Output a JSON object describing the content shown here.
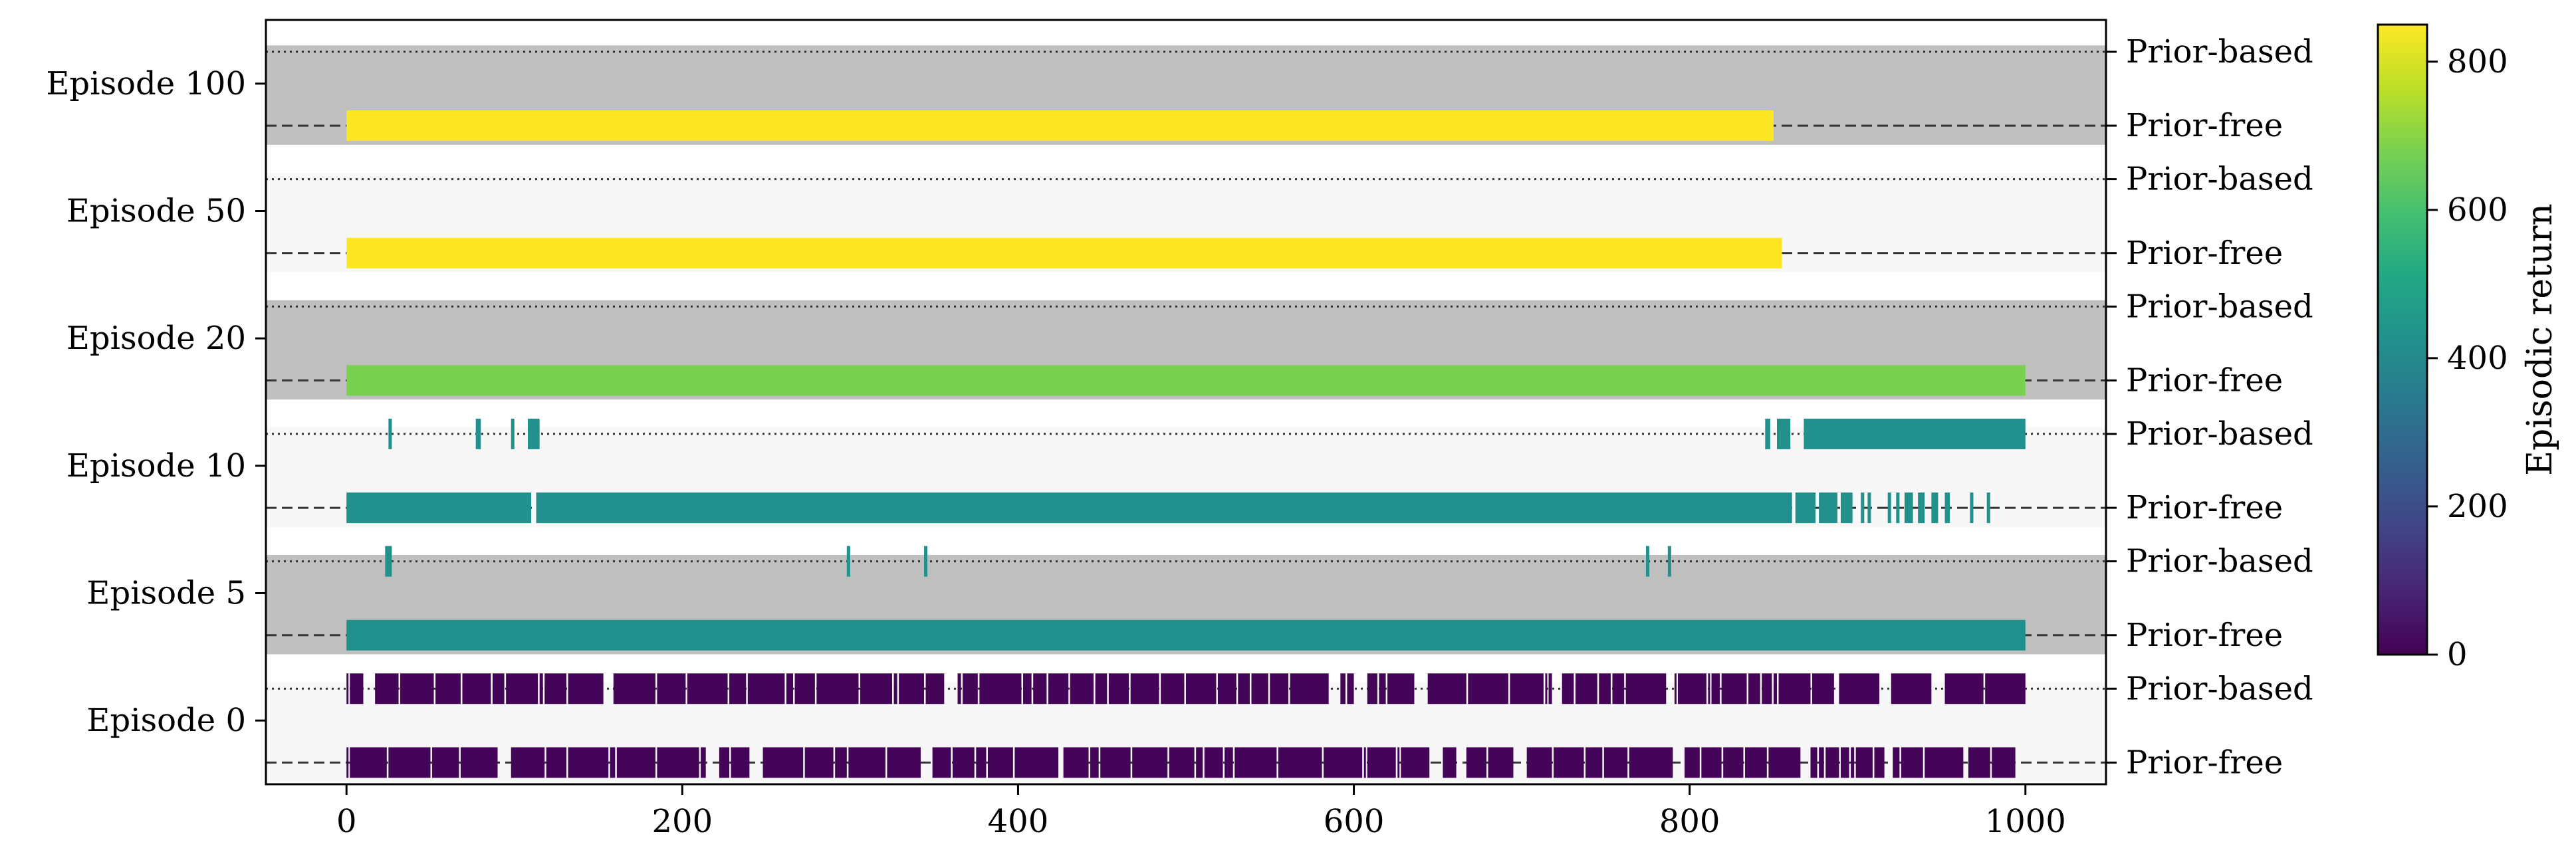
{
  "chart_data": {
    "type": "heatmap",
    "xlim": [
      -48,
      1048
    ],
    "x_ticks": [
      "0",
      "200",
      "400",
      "600",
      "800",
      "1000"
    ],
    "x_tick_values": [
      0,
      200,
      400,
      600,
      800,
      1000
    ],
    "right_labels": {
      "based": "Prior-based",
      "free": "Prior-free"
    },
    "colorbar": {
      "label": "Episodic return",
      "range": [
        0,
        850
      ],
      "ticks": [
        "0",
        "200",
        "400",
        "600",
        "800"
      ],
      "tick_values": [
        0,
        200,
        400,
        600,
        800
      ],
      "colormap": "viridis"
    },
    "episodes": [
      {
        "label": "Episode 100",
        "band": "gray",
        "prior_based": {
          "return": null,
          "segments": []
        },
        "prior_free": {
          "return": 850,
          "segments": [
            [
              0,
              850
            ]
          ]
        }
      },
      {
        "label": "Episode 50",
        "band": "light",
        "prior_based": {
          "return": null,
          "segments": []
        },
        "prior_free": {
          "return": 855,
          "segments": [
            [
              0,
              855
            ]
          ]
        }
      },
      {
        "label": "Episode 20",
        "band": "gray",
        "prior_based": {
          "return": null,
          "segments": []
        },
        "prior_free": {
          "return": 680,
          "segments": [
            [
              0,
              1000
            ]
          ]
        }
      },
      {
        "label": "Episode 10",
        "band": "light",
        "prior_based": {
          "return": 420,
          "segments": [
            [
              25,
              27
            ],
            [
              77,
              80
            ],
            [
              98,
              100
            ],
            [
              108,
              115
            ],
            [
              845,
              848
            ],
            [
              852,
              860
            ],
            [
              868,
              1000
            ]
          ]
        },
        "prior_free": {
          "return": 420,
          "segments": [
            [
              0,
              110
            ],
            [
              113,
              861
            ],
            [
              863,
              875
            ],
            [
              877,
              888
            ],
            [
              890,
              897
            ],
            [
              902,
              904
            ],
            [
              906,
              908
            ],
            [
              918,
              920
            ],
            [
              923,
              925
            ],
            [
              928,
              933
            ],
            [
              936,
              940
            ],
            [
              944,
              948
            ],
            [
              952,
              955
            ],
            [
              967,
              969
            ],
            [
              977,
              979
            ]
          ]
        }
      },
      {
        "label": "Episode 5",
        "band": "gray",
        "prior_based": {
          "return": 420,
          "segments": [
            [
              23,
              27
            ],
            [
              298,
              300
            ],
            [
              344,
              346
            ],
            [
              774,
              776
            ],
            [
              787,
              789
            ]
          ]
        },
        "prior_free": {
          "return": 420,
          "segments": [
            [
              0,
              1000
            ]
          ]
        }
      },
      {
        "label": "Episode 0",
        "band": "light",
        "prior_based": {
          "return": 10,
          "segments": [
            [
              0,
              1000
            ]
          ],
          "fragmented": true,
          "seed": 7
        },
        "prior_free": {
          "return": 10,
          "segments": [
            [
              0,
              994
            ]
          ],
          "fragmented": true,
          "seed": 13
        }
      }
    ]
  }
}
